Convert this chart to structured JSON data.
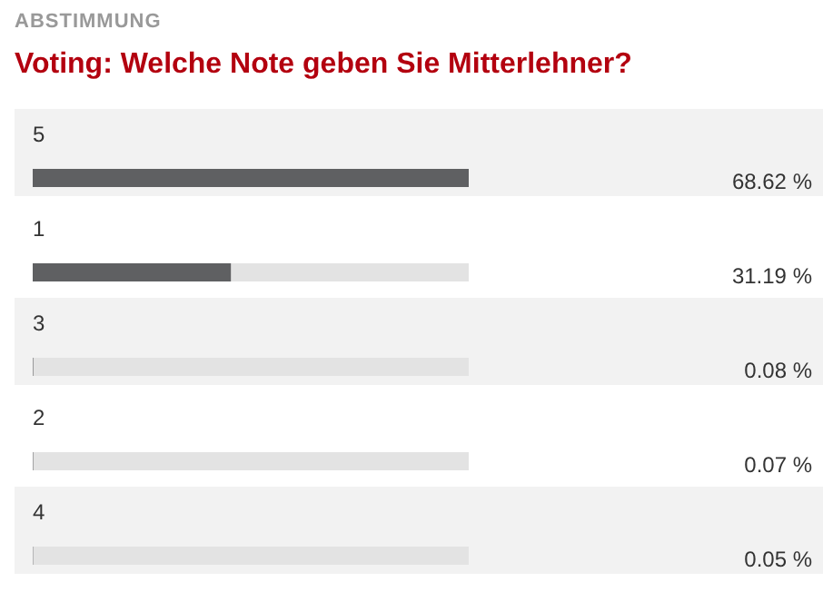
{
  "chart_data": {
    "type": "bar",
    "orientation": "horizontal",
    "subtitle": "ABSTIMMUNG",
    "title": "Voting: Welche Note geben Sie Mitterlehner?",
    "categories": [
      "5",
      "1",
      "3",
      "2",
      "4"
    ],
    "values": [
      68.62,
      31.19,
      0.08,
      0.07,
      0.05
    ],
    "value_labels": [
      "68.62 %",
      "31.19 %",
      "0.08 %",
      "0.07 %",
      "0.05 %"
    ],
    "color": "#5f6062"
  }
}
